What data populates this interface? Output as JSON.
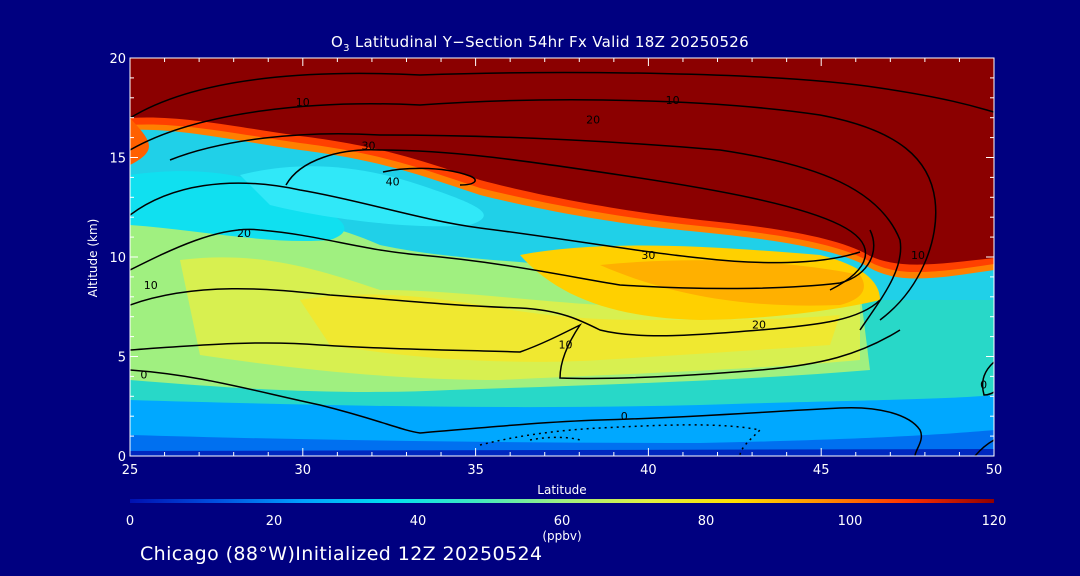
{
  "title": {
    "species": "O",
    "species_sub": "3",
    "rest": " Latitudinal Y−Section 54hr  Fx Valid 18Z 20250526"
  },
  "footer": "Chicago (88°W)Initialized 12Z 20250524",
  "chart_data": {
    "type": "heatmap",
    "xlabel": "Latitude",
    "ylabel": "Altitude (km)",
    "xlim": [
      25,
      50
    ],
    "ylim": [
      0,
      20
    ],
    "xticks": [
      25,
      30,
      35,
      40,
      45,
      50
    ],
    "yticks": [
      0,
      5,
      10,
      15,
      20
    ],
    "colorbar": {
      "label": "(ppbv)",
      "range": [
        0,
        120
      ],
      "ticks": [
        0,
        20,
        40,
        60,
        80,
        100,
        120
      ],
      "colors": [
        "#0010b0",
        "#0050e0",
        "#00a0ff",
        "#00e0f0",
        "#40e8c0",
        "#a0f080",
        "#e0f040",
        "#ffe000",
        "#ff9000",
        "#ff3000",
        "#900000"
      ]
    },
    "contour_levels": [
      0,
      10,
      20,
      30,
      40
    ],
    "contour_labels": [
      {
        "text": "10",
        "x": 30.0,
        "y": 17.8
      },
      {
        "text": "10",
        "x": 40.7,
        "y": 17.9
      },
      {
        "text": "20",
        "x": 38.4,
        "y": 16.9
      },
      {
        "text": "30",
        "x": 31.9,
        "y": 15.6
      },
      {
        "text": "40",
        "x": 32.6,
        "y": 13.8
      },
      {
        "text": "20",
        "x": 28.3,
        "y": 11.2
      },
      {
        "text": "30",
        "x": 40.0,
        "y": 10.1
      },
      {
        "text": "10",
        "x": 25.6,
        "y": 8.6
      },
      {
        "text": "20",
        "x": 43.2,
        "y": 6.6
      },
      {
        "text": "10",
        "x": 37.6,
        "y": 5.6
      },
      {
        "text": "10",
        "x": 47.8,
        "y": 10.1
      },
      {
        "text": "0",
        "x": 25.4,
        "y": 4.1
      },
      {
        "text": "0",
        "x": 39.3,
        "y": 2.0
      },
      {
        "text": "0",
        "x": 49.7,
        "y": 3.6
      }
    ]
  }
}
